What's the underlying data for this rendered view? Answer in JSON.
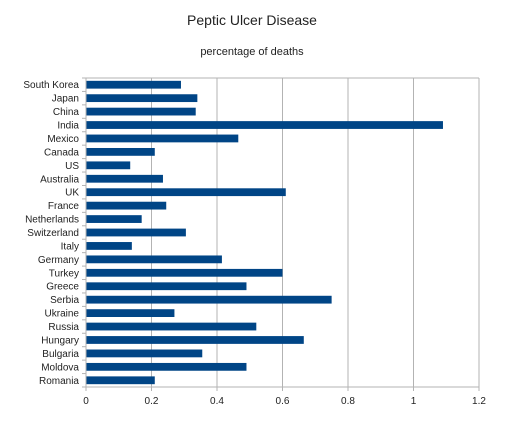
{
  "chart_data": {
    "type": "bar",
    "orientation": "horizontal",
    "title": "Peptic Ulcer Disease",
    "subtitle": "percentage of deaths",
    "xlabel": "",
    "ylabel": "",
    "xlim": [
      0,
      1.2
    ],
    "xticks": [
      "0",
      "0.2",
      "0.4",
      "0.6",
      "0.8",
      "1",
      "1.2"
    ],
    "grid": true,
    "legend": "none",
    "bar_color": "#004586",
    "grid_color": "#b3b3b3",
    "categories": [
      "South Korea",
      "Japan",
      "China",
      "India",
      "Mexico",
      "Canada",
      "US",
      "Australia",
      "UK",
      "France",
      "Netherlands",
      "Switzerland",
      "Italy",
      "Germany",
      "Turkey",
      "Greece",
      "Serbia",
      "Ukraine",
      "Russia",
      "Hungary",
      "Bulgaria",
      "Moldova",
      "Romania"
    ],
    "values": [
      0.29,
      0.34,
      0.335,
      1.09,
      0.465,
      0.21,
      0.135,
      0.235,
      0.61,
      0.245,
      0.17,
      0.305,
      0.14,
      0.415,
      0.6,
      0.49,
      0.75,
      0.27,
      0.52,
      0.665,
      0.355,
      0.49,
      0.21
    ]
  }
}
